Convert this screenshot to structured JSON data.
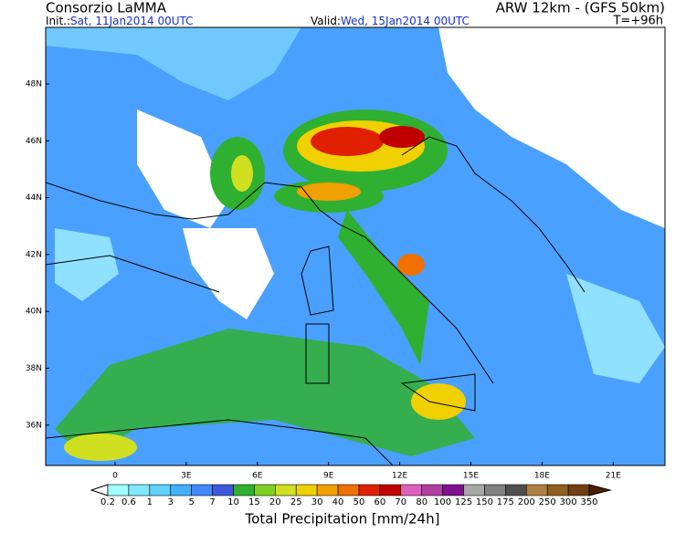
{
  "header": {
    "title": "Consorzio LaMMA",
    "model": "ARW 12km - (GFS 50km)",
    "init_label": "Init.:",
    "init_value": "Sat, 11Jan2014 00UTC",
    "valid_label": "Valid:",
    "valid_value": "Wed, 15Jan2014 00UTC",
    "forecast_time": "T=+96h"
  },
  "map": {
    "lat_labels": [
      "48N",
      "46N",
      "44N",
      "42N",
      "40N",
      "38N",
      "36N"
    ],
    "lon_labels": [
      "0",
      "3E",
      "6E",
      "9E",
      "12E",
      "15E",
      "18E",
      "21E"
    ]
  },
  "legend": {
    "title": "Total Precipitation [mm/24h]",
    "levels": [
      0.2,
      0.6,
      1,
      3,
      5,
      7,
      10,
      15,
      20,
      25,
      30,
      40,
      50,
      60,
      70,
      80,
      100,
      125,
      150,
      175,
      200,
      250,
      300,
      350
    ],
    "colors": [
      "#ffffff",
      "#a0ffff",
      "#80e8ff",
      "#60d0ff",
      "#40b0ff",
      "#4088ff",
      "#4058e0",
      "#30b030",
      "#80d020",
      "#d0e020",
      "#f0d000",
      "#f0a000",
      "#f07000",
      "#e02000",
      "#c00000",
      "#e060c0",
      "#b040a0",
      "#801090",
      "#a8a8a8",
      "#808080",
      "#505050",
      "#b08040",
      "#906020",
      "#704010",
      "#502000"
    ]
  }
}
